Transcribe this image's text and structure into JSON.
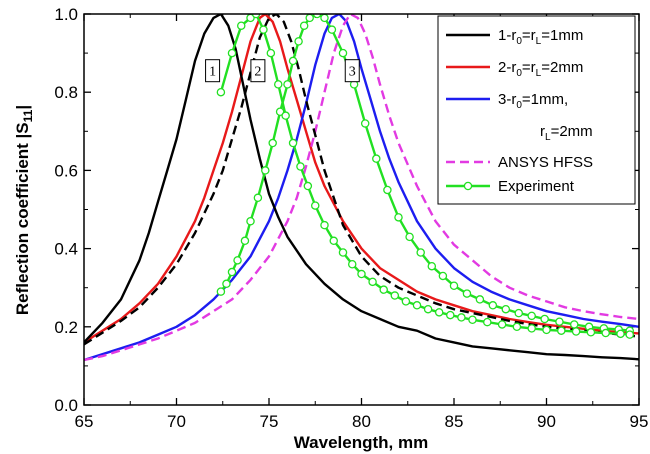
{
  "chart_data": {
    "type": "line",
    "xlabel": "Wavelength, mm",
    "ylabel_main": "Reflection coefficient |S",
    "ylabel_sub": "11",
    "ylabel_end": "|",
    "xlim": [
      65,
      95
    ],
    "ylim": [
      0.0,
      1.0
    ],
    "x_ticks": [
      65,
      70,
      75,
      80,
      85,
      90,
      95
    ],
    "y_ticks": [
      0.0,
      0.2,
      0.4,
      0.6,
      0.8,
      1.0
    ],
    "x_tick_labels": [
      "65",
      "70",
      "75",
      "80",
      "85",
      "90",
      "95"
    ],
    "y_tick_labels": [
      "0.0",
      "0.2",
      "0.4",
      "0.6",
      "0.8",
      "1.0"
    ],
    "legend_position": "top-right",
    "annotations": [
      {
        "label": "1",
        "x": 71.95,
        "y": 0.855
      },
      {
        "label": "2",
        "x": 74.4,
        "y": 0.855
      },
      {
        "label": "3",
        "x": 79.5,
        "y": 0.855
      }
    ],
    "series": [
      {
        "name": "1-r0=rL=1mm",
        "legend_parts": [
          [
            "1-r",
            ""
          ],
          [
            "0",
            "sub"
          ],
          [
            "=r",
            ""
          ],
          [
            "L",
            "sub"
          ],
          [
            "=1mm",
            ""
          ]
        ],
        "color": "#000000",
        "dash": "solid",
        "markers": false,
        "x": [
          65,
          66,
          67,
          68,
          68.5,
          69,
          69.5,
          70,
          70.5,
          71,
          71.5,
          72,
          72.4,
          72.8,
          73.2,
          73.6,
          74,
          74.5,
          75,
          75.5,
          76,
          77,
          78,
          79,
          80,
          81,
          82,
          83,
          84,
          85,
          86,
          87,
          88,
          89,
          90,
          91,
          92,
          93,
          94,
          95
        ],
        "y": [
          0.16,
          0.21,
          0.27,
          0.37,
          0.44,
          0.52,
          0.6,
          0.68,
          0.78,
          0.88,
          0.95,
          0.99,
          1.0,
          0.97,
          0.91,
          0.82,
          0.73,
          0.63,
          0.54,
          0.48,
          0.43,
          0.36,
          0.31,
          0.27,
          0.24,
          0.22,
          0.2,
          0.19,
          0.17,
          0.16,
          0.15,
          0.145,
          0.14,
          0.135,
          0.13,
          0.128,
          0.125,
          0.122,
          0.12,
          0.117
        ]
      },
      {
        "name": "2-r0=rL=2mm",
        "legend_parts": [
          [
            "2-r",
            ""
          ],
          [
            "0",
            "sub"
          ],
          [
            "=r",
            ""
          ],
          [
            "L",
            "sub"
          ],
          [
            "=2mm",
            ""
          ]
        ],
        "color": "#e8191a",
        "dash": "solid",
        "markers": false,
        "x": [
          65,
          66,
          67,
          68,
          69,
          70,
          71,
          71.5,
          72,
          72.5,
          73,
          73.5,
          74,
          74.5,
          74.8,
          75.2,
          75.6,
          76,
          76.5,
          77,
          77.5,
          78,
          79,
          80,
          81,
          82,
          83,
          84,
          85,
          86,
          87,
          88,
          89,
          90,
          91,
          92,
          93,
          94,
          95
        ],
        "y": [
          0.16,
          0.19,
          0.22,
          0.26,
          0.31,
          0.38,
          0.47,
          0.53,
          0.6,
          0.67,
          0.75,
          0.84,
          0.93,
          0.99,
          1.0,
          0.98,
          0.93,
          0.86,
          0.78,
          0.7,
          0.62,
          0.56,
          0.47,
          0.4,
          0.35,
          0.32,
          0.29,
          0.27,
          0.255,
          0.24,
          0.23,
          0.22,
          0.212,
          0.205,
          0.2,
          0.195,
          0.19,
          0.186,
          0.183
        ]
      },
      {
        "name": "3-r0=1mm, rL=2mm",
        "legend_parts": [
          [
            "3-r",
            ""
          ],
          [
            "0",
            "sub"
          ],
          [
            "=1mm,",
            ""
          ]
        ],
        "legend_parts_line2": [
          [
            "r",
            ""
          ],
          [
            "L",
            "sub"
          ],
          [
            "=2mm",
            ""
          ]
        ],
        "color": "#1d1df0",
        "dash": "solid",
        "markers": false,
        "x": [
          65,
          66,
          67,
          68,
          69,
          70,
          71,
          72,
          73,
          74,
          75,
          75.5,
          76,
          76.5,
          77,
          77.5,
          78,
          78.4,
          78.8,
          79.2,
          79.6,
          80,
          80.5,
          81,
          81.5,
          82,
          83,
          84,
          85,
          86,
          87,
          88,
          89,
          90,
          91,
          92,
          93,
          94,
          95
        ],
        "y": [
          0.115,
          0.13,
          0.145,
          0.16,
          0.18,
          0.2,
          0.23,
          0.27,
          0.32,
          0.38,
          0.47,
          0.53,
          0.6,
          0.68,
          0.77,
          0.87,
          0.95,
          0.99,
          1.0,
          0.98,
          0.93,
          0.86,
          0.78,
          0.7,
          0.63,
          0.57,
          0.47,
          0.4,
          0.35,
          0.315,
          0.29,
          0.27,
          0.255,
          0.24,
          0.23,
          0.22,
          0.213,
          0.207,
          0.2
        ]
      },
      {
        "name": "ANSYS HFSS",
        "legend_parts": [
          [
            "ANSYS HFSS",
            ""
          ]
        ],
        "color": "#e23ae2",
        "dash": "dash",
        "markers": false,
        "x": [
          65,
          66,
          67,
          68,
          69,
          70,
          71,
          72,
          73,
          74,
          75,
          76,
          76.5,
          77,
          77.5,
          78,
          78.5,
          79,
          79.4,
          79.8,
          80.2,
          80.6,
          81,
          81.5,
          82,
          83,
          84,
          85,
          86,
          87,
          88,
          89,
          90,
          91,
          92,
          93,
          94,
          95
        ],
        "y": [
          0.115,
          0.125,
          0.14,
          0.155,
          0.17,
          0.19,
          0.21,
          0.24,
          0.27,
          0.32,
          0.38,
          0.47,
          0.53,
          0.61,
          0.7,
          0.8,
          0.9,
          0.97,
          1.0,
          0.99,
          0.95,
          0.89,
          0.82,
          0.74,
          0.67,
          0.56,
          0.47,
          0.41,
          0.37,
          0.33,
          0.3,
          0.28,
          0.265,
          0.25,
          0.24,
          0.232,
          0.225,
          0.22
        ]
      },
      {
        "name": "black dashed (unlabeled)",
        "legend_parts": [],
        "color": "#000000",
        "dash": "dash",
        "markers": false,
        "in_legend": false,
        "x": [
          65,
          66,
          67,
          68,
          69,
          70,
          71,
          72,
          72.5,
          73,
          73.5,
          74,
          74.5,
          75,
          75.4,
          75.8,
          76.2,
          76.6,
          77,
          77.5,
          78,
          79,
          80,
          81,
          82,
          83,
          84,
          85,
          86,
          87,
          88,
          89,
          90,
          91,
          92,
          93,
          94,
          95
        ],
        "y": [
          0.155,
          0.185,
          0.215,
          0.25,
          0.3,
          0.36,
          0.44,
          0.54,
          0.6,
          0.68,
          0.76,
          0.85,
          0.94,
          0.99,
          1.0,
          0.98,
          0.93,
          0.86,
          0.78,
          0.69,
          0.6,
          0.46,
          0.38,
          0.33,
          0.3,
          0.28,
          0.26,
          0.245,
          0.235,
          0.225,
          0.215,
          0.207,
          0.2,
          0.195,
          0.19,
          0.185,
          0.18,
          0.175
        ]
      },
      {
        "name": "Experiment",
        "legend_parts": [
          [
            "Experiment",
            ""
          ]
        ],
        "color": "#22e022",
        "dash": "solid",
        "markers": true,
        "x": [
          72.4,
          72.7,
          73,
          73.3,
          73.7,
          74.0,
          74.4,
          74.8,
          75.2,
          75.6,
          76,
          76.3,
          76.6,
          76.9,
          77.2,
          77.6,
          78,
          78.4,
          79,
          79.6,
          80.2,
          80.8,
          81.4,
          82,
          82.6,
          83.2,
          83.8,
          84.4,
          85,
          85.7,
          86.4,
          87.1,
          87.8,
          88.5,
          89.2,
          89.9,
          90.7,
          91.5,
          92.3,
          93.1,
          93.9,
          94.5
        ],
        "y": [
          0.29,
          0.31,
          0.34,
          0.37,
          0.42,
          0.47,
          0.53,
          0.6,
          0.67,
          0.75,
          0.82,
          0.88,
          0.93,
          0.97,
          0.99,
          1.0,
          0.99,
          0.96,
          0.9,
          0.82,
          0.72,
          0.63,
          0.55,
          0.48,
          0.43,
          0.39,
          0.355,
          0.33,
          0.305,
          0.285,
          0.27,
          0.255,
          0.245,
          0.235,
          0.228,
          0.22,
          0.213,
          0.206,
          0.2,
          0.196,
          0.193,
          0.19
        ]
      },
      {
        "name": "Experiment (2)",
        "legend_parts": [],
        "color": "#22e022",
        "dash": "solid",
        "markers": true,
        "in_legend": false,
        "x": [
          72.4,
          73,
          73.5,
          74,
          74.3,
          74.7,
          75.1,
          75.5,
          75.9,
          76.3,
          76.7,
          77.1,
          77.5,
          78,
          78.5,
          79,
          79.5,
          80,
          80.6,
          81.2,
          81.8,
          82.4,
          83,
          83.6,
          84.2,
          84.8,
          85.4,
          86,
          86.8,
          87.6,
          88.4,
          89.2,
          90,
          90.8,
          91.6,
          92.4,
          93.2,
          94,
          94.5
        ],
        "y": [
          0.8,
          0.9,
          0.97,
          0.99,
          1.0,
          0.96,
          0.9,
          0.82,
          0.74,
          0.67,
          0.61,
          0.56,
          0.51,
          0.46,
          0.42,
          0.39,
          0.36,
          0.335,
          0.315,
          0.295,
          0.28,
          0.265,
          0.255,
          0.245,
          0.237,
          0.23,
          0.224,
          0.218,
          0.212,
          0.206,
          0.2,
          0.196,
          0.192,
          0.19,
          0.188,
          0.186,
          0.184,
          0.182,
          0.18
        ]
      }
    ]
  }
}
